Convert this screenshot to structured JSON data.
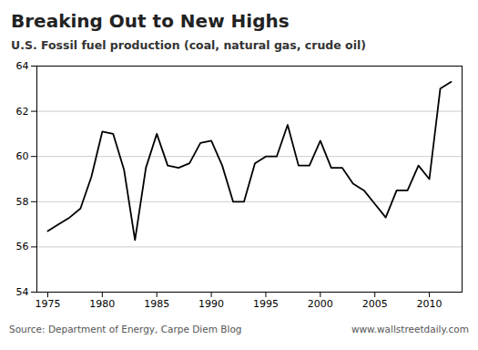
{
  "chart_data": {
    "type": "line",
    "title": "Breaking Out to New Highs",
    "subtitle": "U.S. Fossil fuel production (coal, natural gas, crude oil)",
    "annotations": [
      "Source: Department of Energy, Carpe Diem Blog",
      "www.wallstreetdaily.com"
    ],
    "x": [
      1975,
      1976,
      1977,
      1978,
      1979,
      1980,
      1981,
      1982,
      1983,
      1984,
      1985,
      1986,
      1987,
      1988,
      1989,
      1990,
      1991,
      1992,
      1993,
      1994,
      1995,
      1996,
      1997,
      1998,
      1999,
      2000,
      2001,
      2002,
      2003,
      2004,
      2005,
      2006,
      2007,
      2008,
      2009,
      2010,
      2011,
      2012
    ],
    "values": [
      56.7,
      57.0,
      57.3,
      57.7,
      59.1,
      61.1,
      61.0,
      59.4,
      56.3,
      59.5,
      61.0,
      59.6,
      59.5,
      59.7,
      60.6,
      60.7,
      59.6,
      58.0,
      58.0,
      59.7,
      60.0,
      60.0,
      61.4,
      59.6,
      59.6,
      60.7,
      59.5,
      59.5,
      58.8,
      58.5,
      57.9,
      57.3,
      58.5,
      58.5,
      59.6,
      59.0,
      63.0,
      63.3
    ],
    "xlim": [
      1974,
      2013
    ],
    "xticks": [
      1975,
      1980,
      1985,
      1990,
      1995,
      2000,
      2005,
      2010
    ],
    "ylim": [
      54,
      64
    ],
    "yticks": [
      54,
      56,
      58,
      60,
      62,
      64
    ],
    "grid": true
  }
}
